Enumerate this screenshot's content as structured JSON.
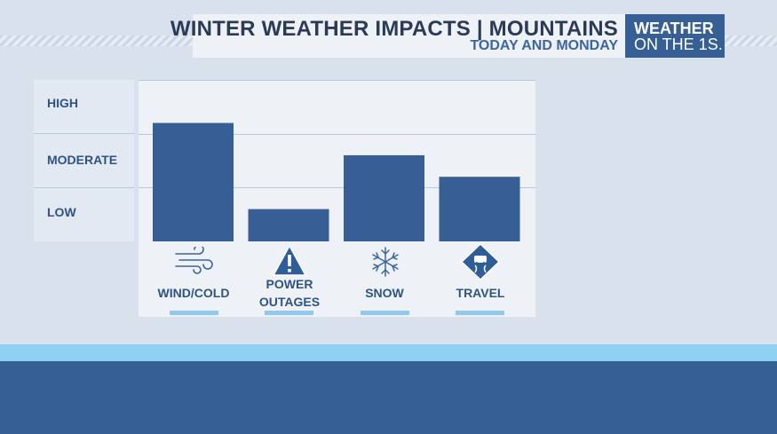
{
  "header": {
    "title": "WINTER WEATHER IMPACTS | MOUNTAINS",
    "subtitle": "TODAY AND MONDAY"
  },
  "brand": {
    "line1": "WEATHER",
    "line2": "ON THE 1S."
  },
  "chart_data": {
    "type": "bar",
    "levels": [
      "LOW",
      "MODERATE",
      "HIGH"
    ],
    "categories": [
      "WIND/COLD",
      "POWER OUTAGES",
      "SNOW",
      "TRAVEL"
    ],
    "values": [
      2.2,
      0.6,
      1.6,
      1.2
    ],
    "ylim": [
      0,
      3
    ],
    "grid": true,
    "bar_color": "#375f96"
  },
  "categories": [
    {
      "label": "WIND/COLD",
      "icon": "wind-icon"
    },
    {
      "label_line1": "POWER",
      "label_line2": "OUTAGES",
      "icon": "warning-triangle-icon"
    },
    {
      "label": "SNOW",
      "icon": "snowflake-icon"
    },
    {
      "label": "TRAVEL",
      "icon": "slippery-road-sign-icon"
    }
  ],
  "colors": {
    "background": "#d9e1ec",
    "bar": "#375f96",
    "accent_light": "#90d0f2",
    "accent_dark": "#365f96",
    "title_text": "#2b3b57",
    "subtitle_text": "#3b64a1"
  }
}
